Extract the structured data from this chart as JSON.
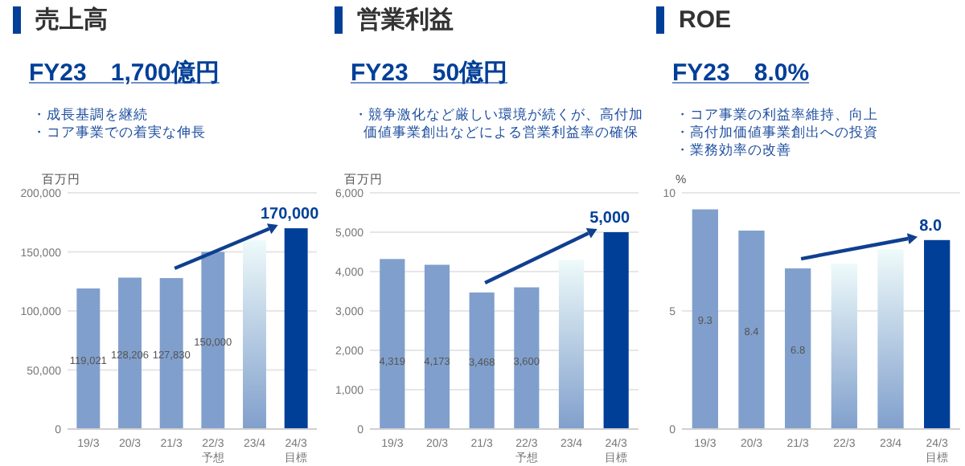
{
  "chart_data": [
    {
      "type": "bar",
      "title": "売上高",
      "subtitle": "FY23　1,700億円",
      "annotations": [
        "・成長基調を継続",
        "・コア事業での着実な伸長"
      ],
      "ylabel": "百万円",
      "categories": [
        "19/3",
        "20/3",
        "21/3",
        "22/3\n予想",
        "23/4",
        "24/3\n目標"
      ],
      "values": [
        119021,
        128206,
        127830,
        150000,
        160000,
        170000
      ],
      "value_labels": [
        "119,021",
        "128,206",
        "127,830",
        "150,000",
        null,
        "170,000"
      ],
      "colors": [
        "#809fcc",
        "#809fcc",
        "#809fcc",
        "#809fcc",
        "#809fcc",
        "#003f98"
      ],
      "ylim": [
        0,
        200000
      ],
      "yticks": [
        {
          "value": 0,
          "label": "0"
        },
        {
          "value": 50000,
          "label": "50,000"
        },
        {
          "value": 100000,
          "label": "100,000"
        },
        {
          "value": 150000,
          "label": "150,000"
        },
        {
          "value": 200000,
          "label": "200,000"
        }
      ],
      "grid": "y"
    },
    {
      "type": "bar",
      "title": "営業利益",
      "subtitle": "FY23　50億円",
      "annotations": [
        "・競争激化など厳しい環境が続くが、高付加価値事業創出などによる営業利益率の確保"
      ],
      "ylabel": "百万円",
      "categories": [
        "19/3",
        "20/3",
        "21/3",
        "22/3\n予想",
        "23/4",
        "24/3\n目標"
      ],
      "values": [
        4319,
        4173,
        3468,
        3600,
        4300,
        5000
      ],
      "value_labels": [
        "4,319",
        "4,173",
        "3,468",
        "3,600",
        null,
        "5,000"
      ],
      "colors": [
        "#809fcc",
        "#809fcc",
        "#809fcc",
        "#809fcc",
        "#809fcc",
        "#003f98"
      ],
      "ylim": [
        0,
        6000
      ],
      "yticks": [
        {
          "value": 0,
          "label": "0"
        },
        {
          "value": 1000,
          "label": "1,000"
        },
        {
          "value": 2000,
          "label": "2,000"
        },
        {
          "value": 3000,
          "label": "3,000"
        },
        {
          "value": 4000,
          "label": "4,000"
        },
        {
          "value": 5000,
          "label": "5,000"
        },
        {
          "value": 6000,
          "label": "6,000"
        }
      ],
      "grid": "y"
    },
    {
      "type": "bar",
      "title": "ROE",
      "subtitle": "FY23　8.0%",
      "annotations": [
        "・コア事業の利益率維持、向上",
        "・高付加価値事業創出への投資",
        "・業務効率の改善"
      ],
      "ylabel": "%",
      "categories": [
        "19/3",
        "20/3",
        "21/3",
        "22/3",
        "23/4",
        "24/3\n目標"
      ],
      "values": [
        9.3,
        8.4,
        6.8,
        7.0,
        7.6,
        8.0
      ],
      "value_labels": [
        "9.3",
        "8.4",
        "6.8",
        null,
        null,
        "8.0"
      ],
      "colors": [
        "#809fcc",
        "#809fcc",
        "#809fcc",
        "#809fcc",
        "#809fcc",
        "#003f98"
      ],
      "ylim": [
        0,
        10
      ],
      "yticks": [
        0,
        5,
        10
      ],
      "grid": "y"
    }
  ]
}
